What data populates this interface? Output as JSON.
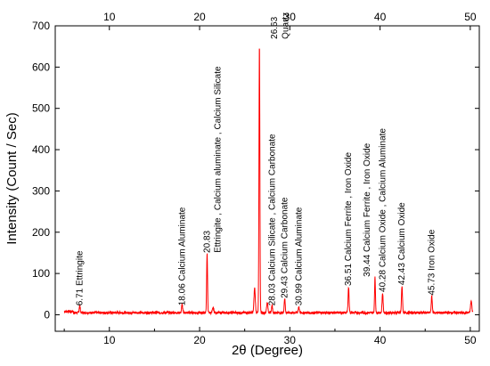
{
  "chart_data": {
    "type": "line",
    "xlabel": "2θ (Degree)",
    "ylabel": "Intensity (Count / Sec)",
    "xlim": [
      4,
      51
    ],
    "ylim": [
      -40,
      700
    ],
    "x_ticks": [
      10,
      20,
      30,
      40,
      50
    ],
    "y_ticks": [
      0,
      100,
      200,
      300,
      400,
      500,
      600,
      700
    ],
    "top_axis_ticks": [
      10,
      20,
      30,
      40,
      50
    ],
    "grid": false,
    "series_color": "#ff0000",
    "baseline": 5,
    "peaks": [
      {
        "x": 6.71,
        "y": 18,
        "w": 0.08
      },
      {
        "x": 18.06,
        "y": 20,
        "w": 0.08
      },
      {
        "x": 20.83,
        "y": 145,
        "w": 0.07
      },
      {
        "x": 26.63,
        "y": 652,
        "w": 0.07
      },
      {
        "x": 28.03,
        "y": 18,
        "w": 0.08
      },
      {
        "x": 29.43,
        "y": 35,
        "w": 0.08
      },
      {
        "x": 30.99,
        "y": 15,
        "w": 0.08
      },
      {
        "x": 36.51,
        "y": 62,
        "w": 0.08
      },
      {
        "x": 39.44,
        "y": 85,
        "w": 0.07
      },
      {
        "x": 40.28,
        "y": 48,
        "w": 0.08
      },
      {
        "x": 42.43,
        "y": 65,
        "w": 0.08
      },
      {
        "x": 45.73,
        "y": 40,
        "w": 0.08
      },
      {
        "x": 50.1,
        "y": 28,
        "w": 0.1
      },
      {
        "x": 26.1,
        "y": 60,
        "w": 0.1
      },
      {
        "x": 27.5,
        "y": 25,
        "w": 0.1
      },
      {
        "x": 21.5,
        "y": 12,
        "w": 0.1
      }
    ],
    "annotations": [
      {
        "text": "6.71  Ettringite",
        "x": 6.71,
        "y": 22
      },
      {
        "text": "18.06  Calcium Aluminate",
        "x": 18.06,
        "y": 22
      },
      {
        "text": "20.83",
        "x": 20.83,
        "y": 150
      },
      {
        "text": "Ettringite , Calcium aluminate , Calcium Silicate",
        "x": 22.0,
        "y": 150
      },
      {
        "text": "26.63",
        "x": 28.3,
        "y": 668
      },
      {
        "text": "Quartz",
        "x": 29.5,
        "y": 668
      },
      {
        "text": "28.03  Calcium Silicate , Calcium Carbonate",
        "x": 28.03,
        "y": 22
      },
      {
        "text": "29.43 Calcium Carbonate",
        "x": 29.43,
        "y": 40
      },
      {
        "text": "30.99 Calcium Aluminate",
        "x": 30.99,
        "y": 22
      },
      {
        "text": "36.51  Calcium Ferrite , Iron Oxide",
        "x": 36.51,
        "y": 70
      },
      {
        "text": "39.44  Calcium Ferrite , Iron Oxide",
        "x": 38.55,
        "y": 92
      },
      {
        "text": "40.28  Calcium Oxide , Calcium Aluminate",
        "x": 40.28,
        "y": 55
      },
      {
        "text": "42.43  Calcium Oxide",
        "x": 42.43,
        "y": 72
      },
      {
        "text": "45.73  Iron Oxide",
        "x": 45.73,
        "y": 47
      }
    ]
  }
}
